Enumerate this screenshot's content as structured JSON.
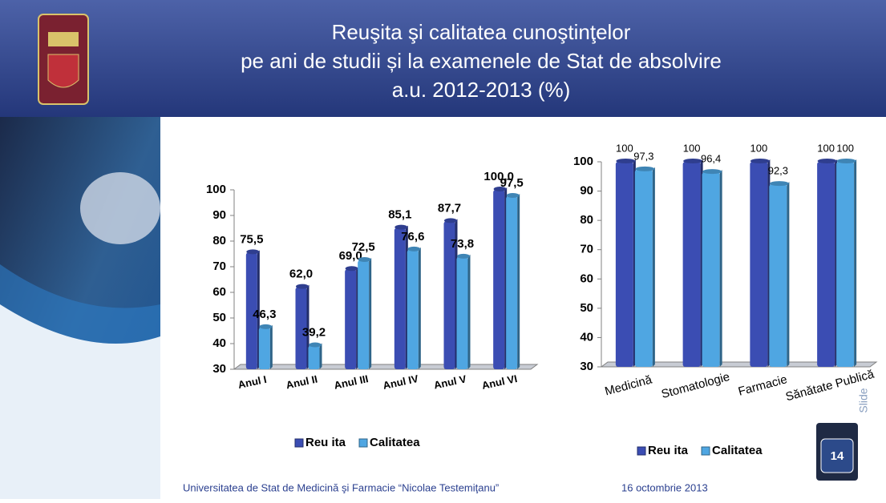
{
  "header": {
    "title_lines": [
      "Reuşita şi calitatea cunoştinţelor",
      "pe ani de studii și la examenele de Stat de absolvire",
      "a.u. 2012-2013 (%)"
    ]
  },
  "footer": {
    "university": "Universitatea de Stat de Medicină şi Farmacie “Nicolae Testemiţanu”",
    "date": "16 octombrie 2013"
  },
  "slide_number": "14",
  "slide_watermark": "Slide",
  "chart_data": [
    {
      "type": "bar",
      "categories": [
        "Anul I",
        "Anul II",
        "Anul III",
        "Anul IV",
        "Anul V",
        "Anul VI"
      ],
      "series": [
        {
          "name": "Reu ita",
          "color": "#3b4db3",
          "values": [
            75.5,
            62.0,
            69.0,
            85.1,
            87.7,
            100.0
          ],
          "value_labels": [
            "75,5",
            "62,0",
            "69,0",
            "85,1",
            "87,7",
            "100,0"
          ]
        },
        {
          "name": "Calitatea",
          "color": "#4fa6e2",
          "values": [
            46.3,
            39.2,
            72.5,
            76.6,
            73.8,
            97.5
          ],
          "value_labels": [
            "46,3",
            "39,2",
            "72,5",
            "76,6",
            "73,8",
            "97,5"
          ]
        }
      ],
      "ylim": [
        30,
        100
      ],
      "yticks": [
        30,
        40,
        50,
        60,
        70,
        80,
        90,
        100
      ],
      "grid": false,
      "legend": "bottom"
    },
    {
      "type": "bar",
      "categories": [
        "Medicină",
        "Stomatologie",
        "Farmacie",
        "Sănătate Publică"
      ],
      "series": [
        {
          "name": "Reu ita",
          "color": "#3b4db3",
          "values": [
            100,
            100,
            100,
            100
          ]
        },
        {
          "name": "Calitatea",
          "color": "#4fa6e2",
          "values": [
            97.3,
            96.4,
            92.3,
            100
          ],
          "value_labels": [
            "97,3",
            "96,4",
            "92,3",
            "100"
          ]
        }
      ],
      "ylim": [
        30,
        100
      ],
      "yticks": [
        30,
        40,
        50,
        60,
        70,
        80,
        90,
        100
      ],
      "grid": false,
      "legend": "bottom"
    }
  ]
}
